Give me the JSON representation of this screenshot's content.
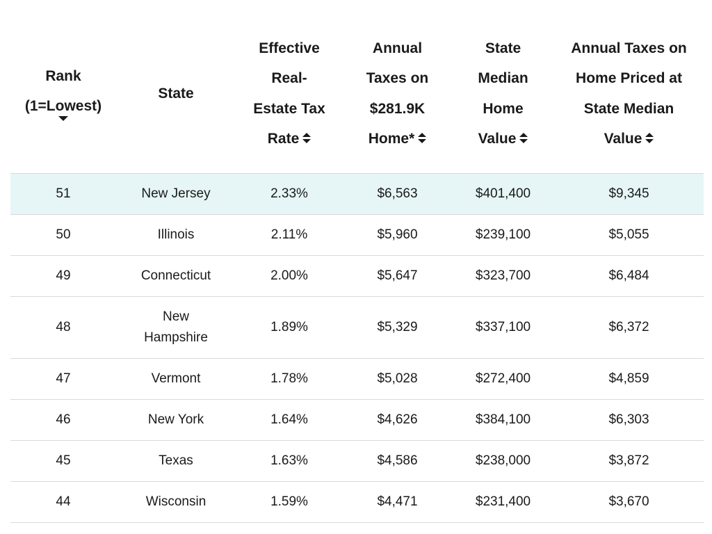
{
  "table": {
    "headers": {
      "rank": [
        "Rank",
        "(1=Lowest)"
      ],
      "state": "State",
      "rate": [
        "Effective",
        "Real-",
        "Estate Tax",
        "Rate"
      ],
      "taxes": [
        "Annual",
        "Taxes on",
        "$281.9K",
        "Home*"
      ],
      "median": [
        "State",
        "Median",
        "Home",
        "Value"
      ],
      "taxmed": [
        "Annual Taxes on",
        "Home Priced at",
        "State Median",
        "Value"
      ]
    },
    "rows": [
      {
        "rank": "51",
        "state": "New Jersey",
        "rate": "2.33%",
        "taxes": "$6,563",
        "median": "$401,400",
        "taxmed": "$9,345"
      },
      {
        "rank": "50",
        "state": "Illinois",
        "rate": "2.11%",
        "taxes": "$5,960",
        "median": "$239,100",
        "taxmed": "$5,055"
      },
      {
        "rank": "49",
        "state": "Connecticut",
        "rate": "2.00%",
        "taxes": "$5,647",
        "median": "$323,700",
        "taxmed": "$6,484"
      },
      {
        "rank": "48",
        "state": "New Hampshire",
        "rate": "1.89%",
        "taxes": "$5,329",
        "median": "$337,100",
        "taxmed": "$6,372"
      },
      {
        "rank": "47",
        "state": "Vermont",
        "rate": "1.78%",
        "taxes": "$5,028",
        "median": "$272,400",
        "taxmed": "$4,859"
      },
      {
        "rank": "46",
        "state": "New York",
        "rate": "1.64%",
        "taxes": "$4,626",
        "median": "$384,100",
        "taxmed": "$6,303"
      },
      {
        "rank": "45",
        "state": "Texas",
        "rate": "1.63%",
        "taxes": "$4,586",
        "median": "$238,000",
        "taxmed": "$3,872"
      },
      {
        "rank": "44",
        "state": "Wisconsin",
        "rate": "1.59%",
        "taxes": "$4,471",
        "median": "$231,400",
        "taxmed": "$3,670"
      }
    ],
    "highlight_color": "#e6f6f6",
    "sorted_by": "rank",
    "sort_direction": "descending"
  }
}
